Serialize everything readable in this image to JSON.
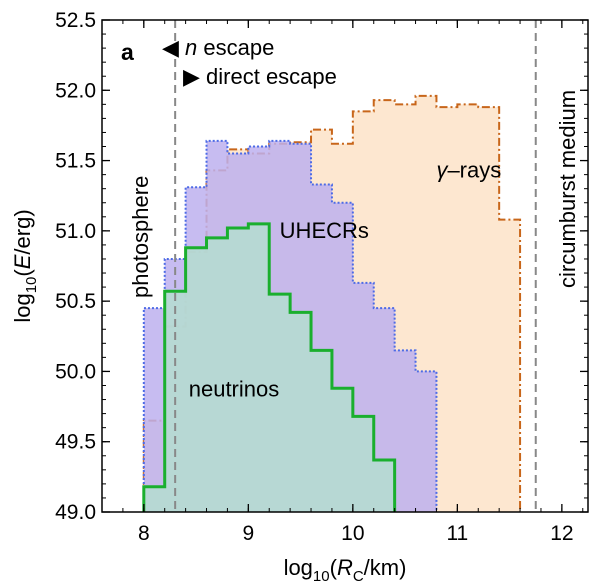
{
  "chart_data": {
    "type": "histogram-step",
    "panel_label": "a",
    "xlabel": {
      "prefix": "log",
      "sub": "10",
      "open": "(",
      "var": "R",
      "var_sub": "C",
      "unit": "/km)"
    },
    "ylabel": {
      "prefix": "log",
      "sub": "10",
      "open": "(",
      "var": "E",
      "unit": "/erg)"
    },
    "xlim": [
      7.6,
      12.25
    ],
    "ylim": [
      49.0,
      52.5
    ],
    "xticks": [
      8,
      9,
      10,
      11,
      12
    ],
    "yticks": [
      49.0,
      49.5,
      50.0,
      50.5,
      51.0,
      51.5,
      52.0,
      52.5
    ],
    "xtick_labels": [
      "8",
      "9",
      "10",
      "11",
      "12"
    ],
    "ytick_labels": [
      "49.0",
      "49.5",
      "50.0",
      "50.5",
      "51.0",
      "51.5",
      "52.0",
      "52.5"
    ],
    "bin_width": 0.2,
    "series": [
      {
        "name": "gamma-rays",
        "label_parts": [
          "γ",
          "–rays"
        ],
        "bins_start": 8.0,
        "values": [
          49.65,
          50.32,
          50.85,
          51.43,
          51.58,
          51.55,
          51.62,
          51.63,
          51.72,
          51.62,
          51.85,
          51.93,
          51.9,
          51.96,
          51.88,
          51.9,
          51.88,
          51.08
        ],
        "fill": "#fde3c8",
        "stroke": "#c8661a",
        "dash": "8 3 2 3"
      },
      {
        "name": "UHECRs",
        "label_parts": [
          "UHECRs"
        ],
        "bins_start": 8.0,
        "values": [
          50.45,
          50.8,
          51.31,
          51.64,
          51.55,
          51.6,
          51.64,
          51.62,
          51.33,
          51.2,
          50.63,
          50.45,
          50.15,
          50.0
        ],
        "fill": "#bdb0ee",
        "stroke": "#4d6be6",
        "dash": "2 2"
      },
      {
        "name": "neutrinos",
        "label_parts": [
          "neutrinos"
        ],
        "bins_start": 8.0,
        "values": [
          49.18,
          50.57,
          50.88,
          50.95,
          51.02,
          51.05,
          50.55,
          50.42,
          50.15,
          49.88,
          49.68,
          49.37
        ],
        "fill": "#b4ddd0",
        "stroke": "#1aaf2e",
        "dash": ""
      }
    ],
    "vlines": [
      {
        "x": 8.3,
        "label": "photosphere",
        "color": "#888888"
      },
      {
        "x": 11.75,
        "label": "circumburst medium",
        "color": "#888888"
      }
    ],
    "legend": [
      {
        "marker": "◀",
        "prefix": "",
        "italic": "n",
        "text": " escape"
      },
      {
        "marker": "▶",
        "prefix": "",
        "italic": "",
        "text": "direct escape"
      }
    ]
  }
}
